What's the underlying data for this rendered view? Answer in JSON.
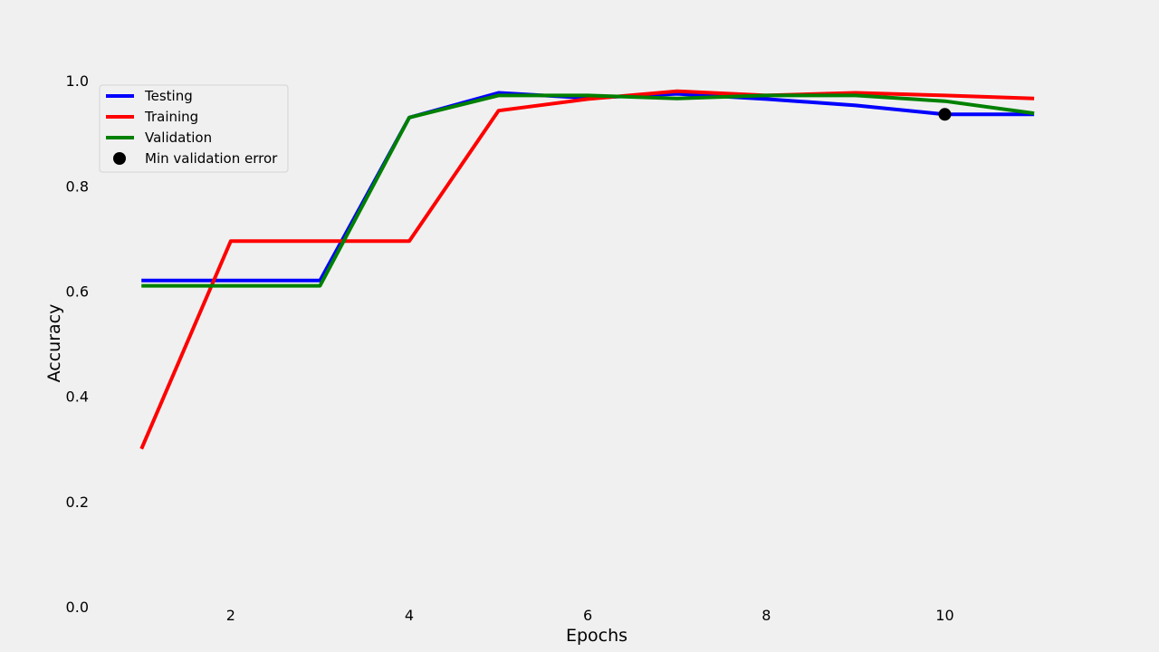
{
  "chart_data": {
    "type": "line",
    "xlabel": "Epochs",
    "ylabel": "Accuracy",
    "xlim": [
      0.45,
      11.75
    ],
    "ylim": [
      0.0,
      1.1
    ],
    "xticks": [
      2,
      4,
      6,
      8,
      10
    ],
    "xtick_labels": [
      "2",
      "4",
      "6",
      "8",
      "10"
    ],
    "yticks": [
      0.0,
      0.2,
      0.4,
      0.6,
      0.8,
      1.0
    ],
    "ytick_labels": [
      "0.0",
      "0.2",
      "0.4",
      "0.6",
      "0.8",
      "1.0"
    ],
    "grid": false,
    "legend_position": "upper-left",
    "x": [
      1,
      2,
      3,
      4,
      5,
      6,
      7,
      8,
      9,
      10,
      11
    ],
    "series": [
      {
        "name": "Testing",
        "color": "#0000ff",
        "values": [
          0.62,
          0.62,
          0.62,
          0.93,
          0.977,
          0.967,
          0.975,
          0.965,
          0.953,
          0.936,
          0.936
        ]
      },
      {
        "name": "Training",
        "color": "#ff0000",
        "values": [
          0.3,
          0.695,
          0.695,
          0.695,
          0.943,
          0.965,
          0.98,
          0.972,
          0.977,
          0.972,
          0.966
        ]
      },
      {
        "name": "Validation",
        "color": "#008000",
        "values": [
          0.61,
          0.61,
          0.61,
          0.93,
          0.972,
          0.972,
          0.966,
          0.972,
          0.972,
          0.961,
          0.938
        ]
      }
    ],
    "markers": [
      {
        "name": "Min validation error",
        "color": "#000000",
        "x": 10,
        "y": 0.936
      }
    ]
  }
}
